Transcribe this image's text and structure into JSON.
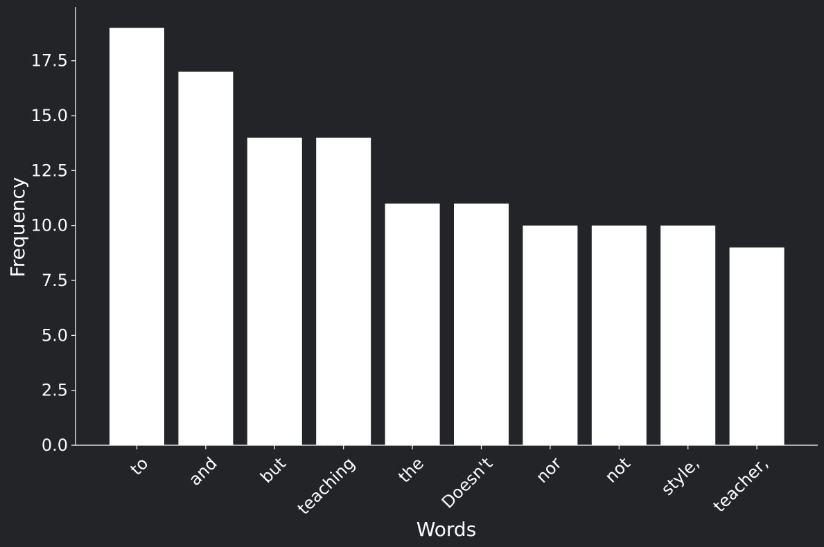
{
  "colors": {
    "background": "#222428",
    "bar": "#ffffff",
    "axis": "#ffffff",
    "text": "#ffffff"
  },
  "chart_data": {
    "type": "bar",
    "title": "",
    "xlabel": "Words",
    "ylabel": "Frequency",
    "categories": [
      "to",
      "and",
      "but",
      "teaching",
      "the",
      "Doesn't",
      "nor",
      "not",
      "style,",
      "teacher,"
    ],
    "values": [
      19,
      17,
      14,
      14,
      11,
      11,
      10,
      10,
      10,
      9
    ],
    "ylim": [
      0,
      19.95
    ],
    "yticks": [
      0,
      2.5,
      5,
      7.5,
      10,
      12.5,
      15,
      17.5
    ],
    "ytick_labels": [
      "0.0",
      "2.5",
      "5.0",
      "7.5",
      "10.0",
      "12.5",
      "15.0",
      "17.5"
    ],
    "grid": false,
    "legend": "none"
  }
}
